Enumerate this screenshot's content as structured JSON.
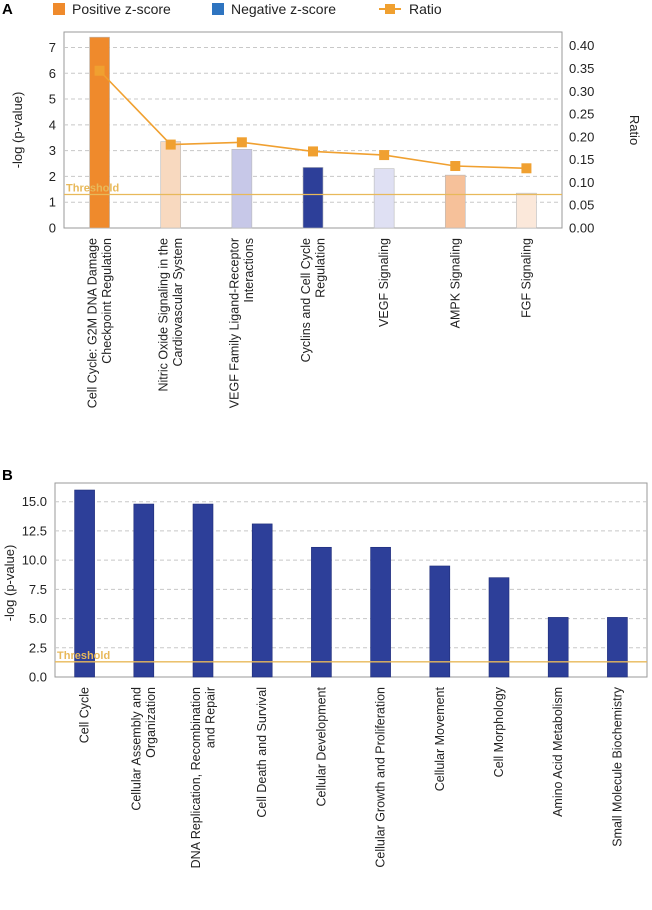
{
  "legend": {
    "positive": {
      "label": "Positive z-score",
      "color": "#ef8a2c"
    },
    "negative": {
      "label": "Negative z-score",
      "color": "#2e74c0"
    },
    "ratio": {
      "label": "Ratio",
      "color": "#f0a030"
    }
  },
  "chart_data": [
    {
      "panel": "A",
      "type": "bar",
      "ylabel": "-log (p-value)",
      "y2label": "Ratio",
      "ylim": [
        0,
        7.6
      ],
      "yticks": [
        "0",
        "1",
        "2",
        "3",
        "4",
        "5",
        "6",
        "7"
      ],
      "y2lim": [
        0,
        0.43
      ],
      "y2ticks": [
        "0.00",
        "0.05",
        "0.10",
        "0.15",
        "0.20",
        "0.25",
        "0.30",
        "0.35",
        "0.40"
      ],
      "threshold": {
        "label": "Threshold",
        "value": 1.3
      },
      "categories": [
        [
          "Cell Cycle: G2M DNA Damage",
          "Checkpoint Regulation"
        ],
        [
          "Nitric Oxide Signaling in the",
          "Cardiovascular System"
        ],
        [
          "VEGF Family Ligand-Receptor",
          "Interactions"
        ],
        [
          "Cyclins and Cell Cycle",
          "Regulation"
        ],
        [
          "VEGF Signaling"
        ],
        [
          "AMPK Signaling"
        ],
        [
          "FGF Signaling"
        ]
      ],
      "series": [
        {
          "name": "-log (p-value)",
          "values": [
            7.4,
            3.35,
            3.05,
            2.35,
            2.3,
            2.05,
            1.35
          ],
          "colors": [
            "#ef8a2c",
            "#f8d9bf",
            "#c7c8e8",
            "#2d3f99",
            "#dfe0f3",
            "#f6c19a",
            "#fbe8da"
          ]
        },
        {
          "name": "Ratio",
          "values": [
            0.345,
            0.183,
            0.188,
            0.168,
            0.16,
            0.136,
            0.131
          ]
        }
      ]
    },
    {
      "panel": "B",
      "type": "bar",
      "ylabel": "-log (p-value)",
      "ylim": [
        0,
        16.6
      ],
      "yticks": [
        "0.0",
        "2.5",
        "5.0",
        "7.5",
        "10.0",
        "12.5",
        "15.0"
      ],
      "threshold": {
        "label": "Threshold",
        "value": 1.3
      },
      "categories": [
        [
          "Cell Cycle"
        ],
        [
          "Cellular Assembly and",
          "Organization"
        ],
        [
          "DNA Replication, Recombination",
          "and Repair"
        ],
        [
          "Cell Death and Survival"
        ],
        [
          "Cellular Development"
        ],
        [
          "Cellular Growth and Proliferation"
        ],
        [
          "Cellular Movement"
        ],
        [
          "Cell Morphology"
        ],
        [
          "Amino Acid Metabolism"
        ],
        [
          "Small Molecule Biochemistry"
        ]
      ],
      "series": [
        {
          "name": "-log (p-value)",
          "values": [
            16.0,
            14.8,
            14.8,
            13.1,
            11.1,
            11.1,
            9.5,
            8.5,
            5.1,
            5.1
          ],
          "color": "#2d3f99"
        }
      ]
    }
  ]
}
